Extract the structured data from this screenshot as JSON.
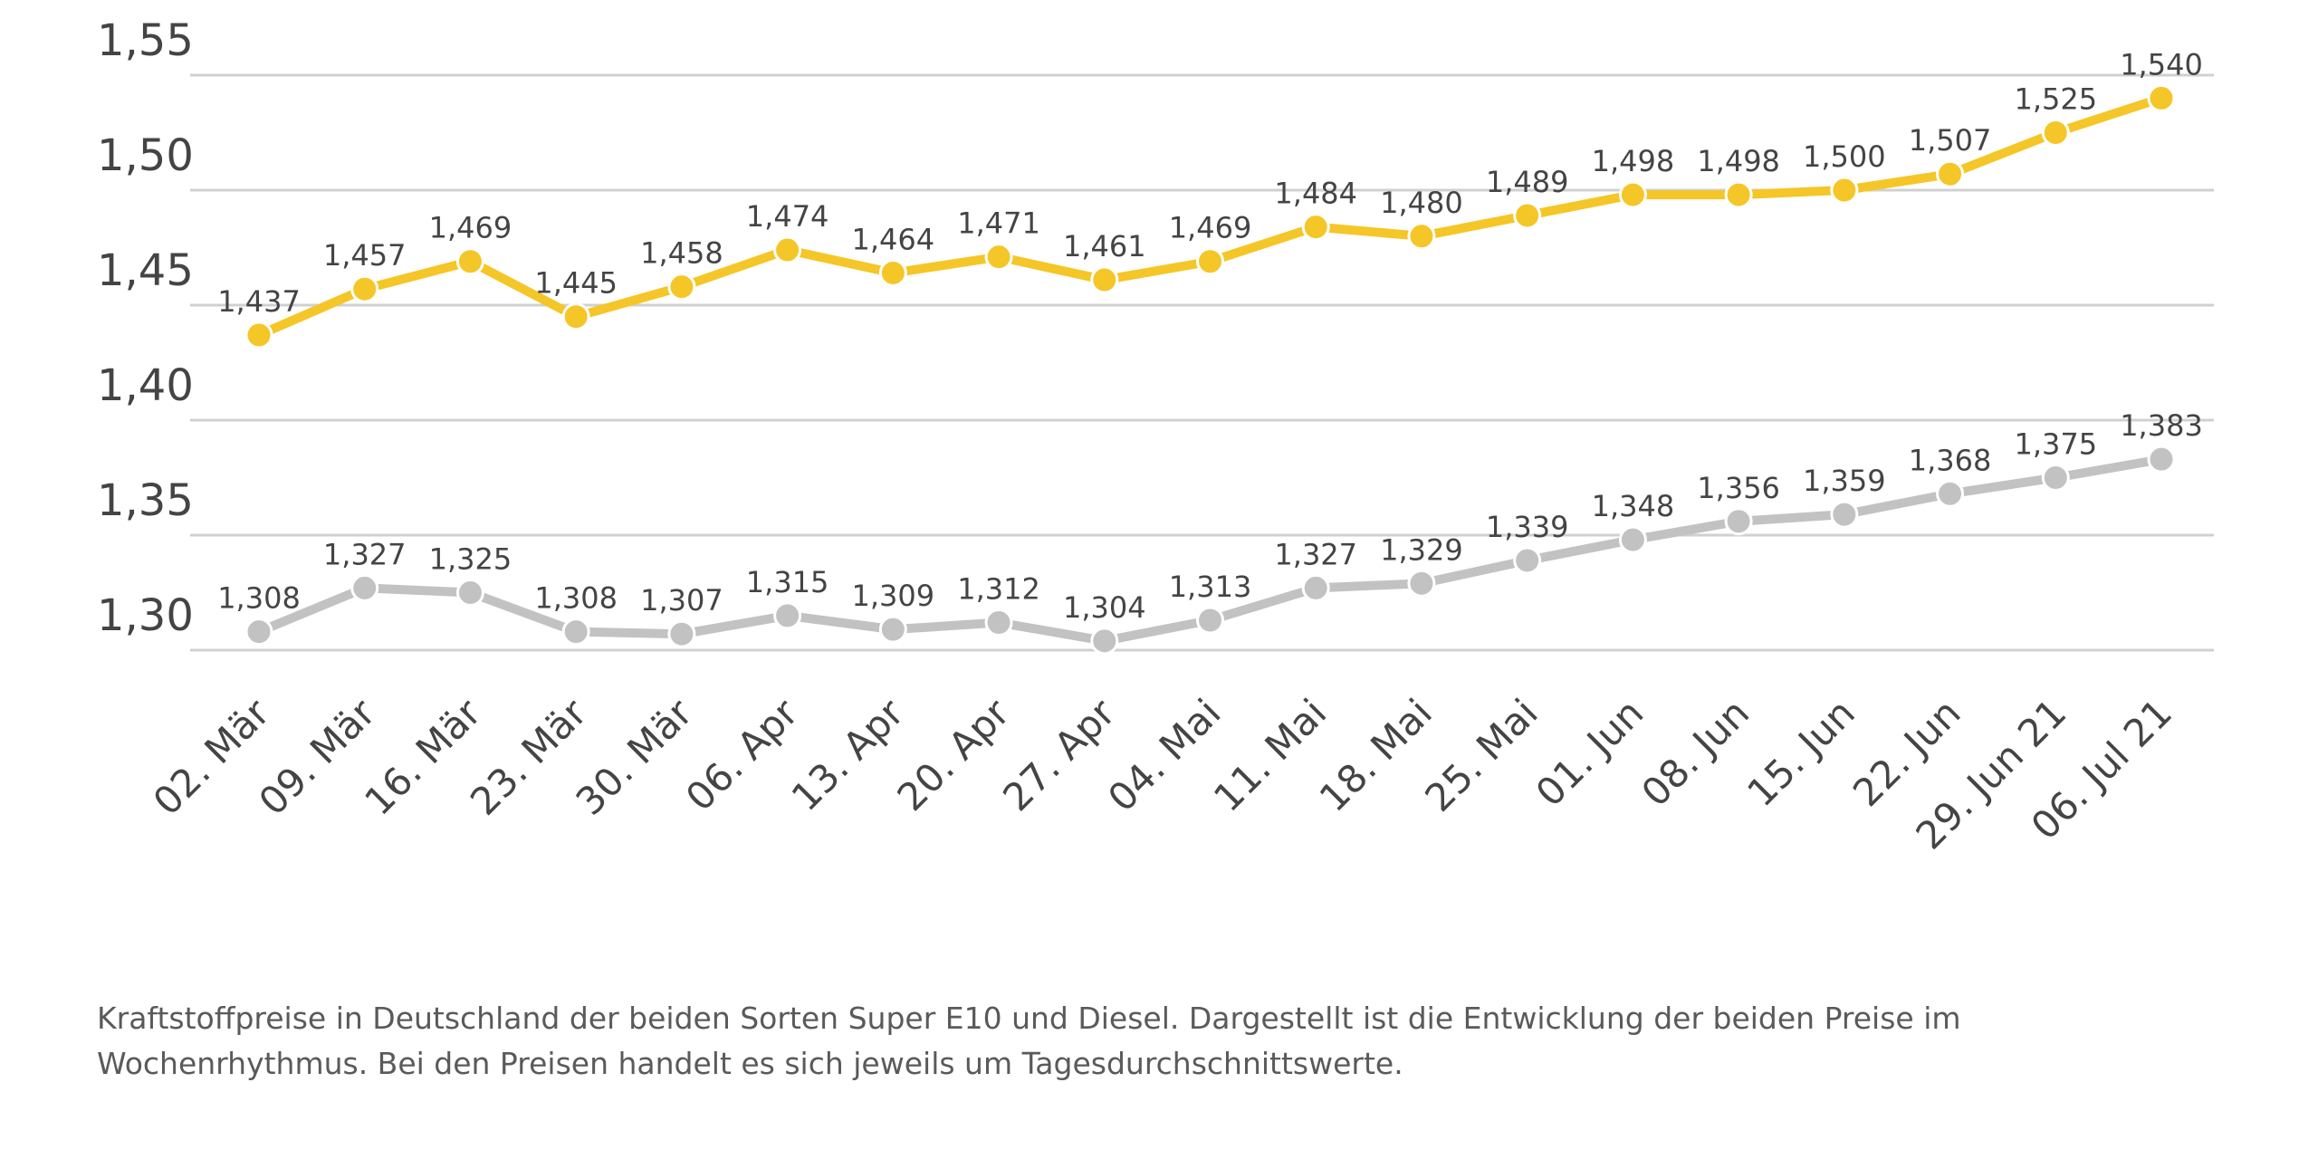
{
  "chart_data": {
    "type": "line",
    "categories": [
      "02. Mär",
      "09. Mär",
      "16. Mär",
      "23. Mär",
      "30. Mär",
      "06. Apr",
      "13. Apr",
      "20. Apr",
      "27. Apr",
      "04. Mai",
      "11. Mai",
      "18. Mai",
      "25. Mai",
      "01. Jun",
      "08. Jun",
      "15. Jun",
      "22. Jun",
      "29. Jun 21",
      "06. Jul 21"
    ],
    "series": [
      {
        "color": "#f5c628",
        "values": [
          1.437,
          1.457,
          1.469,
          1.445,
          1.458,
          1.474,
          1.464,
          1.471,
          1.461,
          1.469,
          1.484,
          1.48,
          1.489,
          1.498,
          1.498,
          1.5,
          1.507,
          1.525,
          1.54
        ],
        "labels": [
          "1,437",
          "1,457",
          "1,469",
          "1,445",
          "1,458",
          "1,474",
          "1,464",
          "1,471",
          "1,461",
          "1,469",
          "1,484",
          "1,480",
          "1,489",
          "1,498",
          "1,498",
          "1,500",
          "1,507",
          "1,525",
          "1,540"
        ]
      },
      {
        "color": "#c2c2c2",
        "values": [
          1.308,
          1.327,
          1.325,
          1.308,
          1.307,
          1.315,
          1.309,
          1.312,
          1.304,
          1.313,
          1.327,
          1.329,
          1.339,
          1.348,
          1.356,
          1.359,
          1.368,
          1.375,
          1.383
        ],
        "labels": [
          "1,308",
          "1,327",
          "1,325",
          "1,308",
          "1,307",
          "1,315",
          "1,309",
          "1,312",
          "1,304",
          "1,313",
          "1,327",
          "1,329",
          "1,339",
          "1,348",
          "1,356",
          "1,359",
          "1,368",
          "1,375",
          "1,383"
        ]
      }
    ],
    "yticks": [
      1.3,
      1.35,
      1.4,
      1.45,
      1.5,
      1.55
    ],
    "ytick_labels": [
      "1,30",
      "1,35",
      "1,40",
      "1,45",
      "1,50",
      "1,55"
    ],
    "ylim": [
      1.3,
      1.55
    ],
    "grid": true
  },
  "caption": "Kraftstoffpreise in Deutschland der beiden Sorten Super E10 und Diesel. Dargestellt ist die Entwicklung der beiden Preise im Wochenrhythmus. Bei den Preisen handelt es sich jeweils um Tagesdurchschnittswerte."
}
